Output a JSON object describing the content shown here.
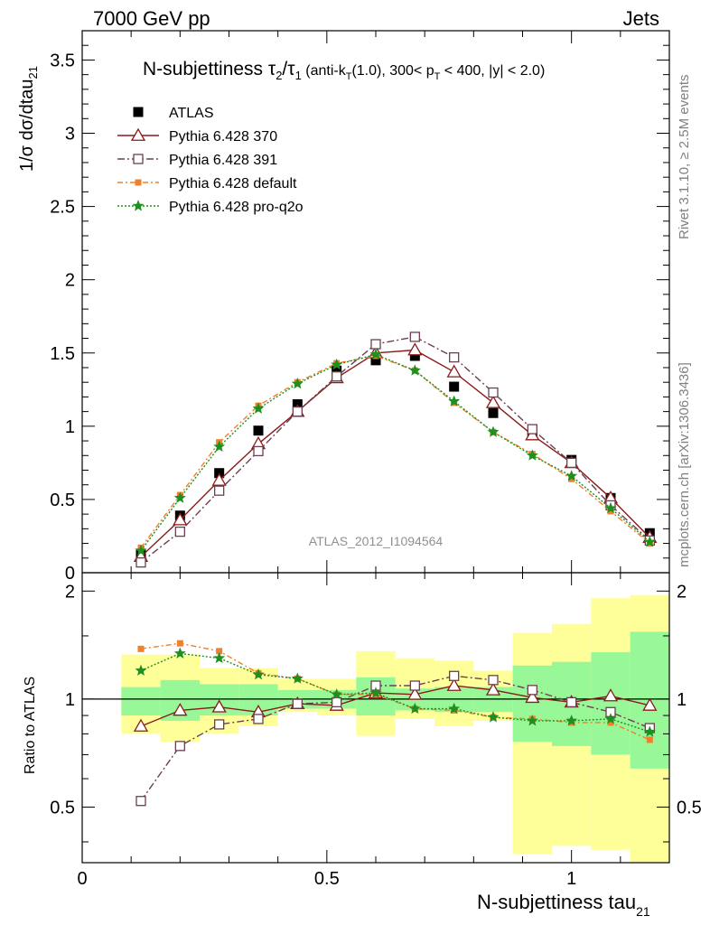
{
  "header": {
    "left": "7000 GeV pp",
    "right": "Jets"
  },
  "side_text": {
    "rivet": "Rivet 3.1.10, ≥ 2.5M events",
    "mcplots": "mcplots.cern.ch [arXiv:1306.3436]"
  },
  "analysis_label": "ATLAS_2012_I1094564",
  "plot_title": {
    "main": "N-subjettiness τ₂/τ₁",
    "selection": "(anti-k_T(1.0), 300< p_T < 400, |y| < 2.0)"
  },
  "axis": {
    "ylabel_main": "1/σ dσ/dtau_21",
    "ylabel_ratio": "Ratio to ATLAS",
    "xlabel": "N-subjettiness tau_21"
  },
  "colors": {
    "atlas": "#000000",
    "p370": "#8b1a1a",
    "p391": "#6b4050",
    "pdefault": "#f0802a",
    "pq2o": "#1f8f1f",
    "band_inner": "#98f898",
    "band_outer": "#ffff9a"
  },
  "chart_data": [
    {
      "type": "line",
      "xlim": [
        0,
        1.2
      ],
      "ylim": [
        0,
        3.7
      ],
      "x_ticks": [
        "0",
        "0.5",
        "1"
      ],
      "y_ticks": [
        "0",
        "0.5",
        "1",
        "1.5",
        "2",
        "2.5",
        "3",
        "3.5"
      ],
      "x": [
        0.12,
        0.2,
        0.28,
        0.36,
        0.44,
        0.52,
        0.6,
        0.68,
        0.76,
        0.84,
        0.92,
        1.0,
        1.08,
        1.16
      ],
      "series": [
        {
          "name": "ATLAS",
          "key": "atlas",
          "marker": "filled-square",
          "values": [
            0.13,
            0.39,
            0.68,
            0.97,
            1.15,
            1.38,
            1.45,
            1.48,
            1.27,
            1.09,
            0.94,
            0.77,
            0.51,
            0.27
          ]
        },
        {
          "name": "Pythia 6.428 370",
          "key": "p370",
          "marker": "open-triangle",
          "values": [
            0.11,
            0.36,
            0.63,
            0.88,
            1.1,
            1.33,
            1.5,
            1.52,
            1.37,
            1.16,
            0.94,
            0.75,
            0.51,
            0.24
          ]
        },
        {
          "name": "Pythia 6.428 391",
          "key": "p391",
          "marker": "open-square",
          "values": [
            0.07,
            0.28,
            0.56,
            0.83,
            1.1,
            1.34,
            1.56,
            1.61,
            1.47,
            1.23,
            0.98,
            0.75,
            0.46,
            0.22
          ]
        },
        {
          "name": "Pythia 6.428 default",
          "key": "pdefault",
          "marker": "small-filled-square",
          "values": [
            0.17,
            0.53,
            0.89,
            1.14,
            1.3,
            1.43,
            1.48,
            1.38,
            1.16,
            0.96,
            0.81,
            0.64,
            0.42,
            0.2
          ]
        },
        {
          "name": "Pythia 6.428 pro-q2o",
          "key": "pq2o",
          "marker": "star",
          "values": [
            0.15,
            0.51,
            0.86,
            1.12,
            1.29,
            1.42,
            1.49,
            1.38,
            1.17,
            0.96,
            0.8,
            0.66,
            0.44,
            0.21
          ]
        }
      ]
    },
    {
      "type": "line",
      "xlim": [
        0,
        1.2
      ],
      "ylim": [
        0.35,
        2.25
      ],
      "x_ticks": [
        "0",
        "0.5",
        "1"
      ],
      "y_ticks": [
        "0.5",
        "1",
        "2"
      ],
      "x": [
        0.12,
        0.2,
        0.28,
        0.36,
        0.44,
        0.52,
        0.6,
        0.68,
        0.76,
        0.84,
        0.92,
        1.0,
        1.08,
        1.16
      ],
      "bins": [
        [
          0.08,
          0.16
        ],
        [
          0.16,
          0.24
        ],
        [
          0.24,
          0.32
        ],
        [
          0.32,
          0.4
        ],
        [
          0.4,
          0.48
        ],
        [
          0.48,
          0.56
        ],
        [
          0.56,
          0.64
        ],
        [
          0.64,
          0.72
        ],
        [
          0.72,
          0.8
        ],
        [
          0.8,
          0.88
        ],
        [
          0.88,
          0.96
        ],
        [
          0.96,
          1.04
        ],
        [
          1.04,
          1.12
        ],
        [
          1.12,
          1.2
        ]
      ],
      "band_inner": [
        [
          0.9,
          1.08
        ],
        [
          0.87,
          1.13
        ],
        [
          0.9,
          1.1
        ],
        [
          0.9,
          1.1
        ],
        [
          0.94,
          1.06
        ],
        [
          0.94,
          1.06
        ],
        [
          0.9,
          1.15
        ],
        [
          0.93,
          1.07
        ],
        [
          0.92,
          1.08
        ],
        [
          0.92,
          1.08
        ],
        [
          0.76,
          1.24
        ],
        [
          0.74,
          1.27
        ],
        [
          0.7,
          1.35
        ],
        [
          0.64,
          1.54
        ]
      ],
      "band_outer": [
        [
          0.8,
          1.33
        ],
        [
          0.76,
          1.33
        ],
        [
          0.8,
          1.22
        ],
        [
          0.84,
          1.22
        ],
        [
          0.92,
          1.14
        ],
        [
          0.9,
          1.14
        ],
        [
          0.79,
          1.36
        ],
        [
          0.88,
          1.3
        ],
        [
          0.84,
          1.28
        ],
        [
          0.87,
          1.2
        ],
        [
          0.37,
          1.53
        ],
        [
          0.39,
          1.62
        ],
        [
          0.38,
          1.91
        ],
        [
          0.35,
          1.95
        ]
      ],
      "series": [
        {
          "name": "Pythia 6.428 370",
          "key": "p370",
          "marker": "open-triangle",
          "values": [
            0.84,
            0.93,
            0.95,
            0.92,
            0.97,
            0.96,
            1.04,
            1.03,
            1.09,
            1.06,
            1.01,
            0.98,
            1.02,
            0.96
          ]
        },
        {
          "name": "Pythia 6.428 391",
          "key": "p391",
          "marker": "open-square",
          "values": [
            0.52,
            0.74,
            0.85,
            0.88,
            0.97,
            0.98,
            1.09,
            1.09,
            1.16,
            1.13,
            1.06,
            0.98,
            0.92,
            0.83
          ]
        },
        {
          "name": "Pythia 6.428 default",
          "key": "pdefault",
          "marker": "small-filled-square",
          "values": [
            1.38,
            1.43,
            1.36,
            1.18,
            1.14,
            1.03,
            1.03,
            0.94,
            0.93,
            0.89,
            0.88,
            0.86,
            0.86,
            0.77
          ]
        },
        {
          "name": "Pythia 6.428 pro-q2o",
          "key": "pq2o",
          "marker": "star",
          "values": [
            1.2,
            1.34,
            1.3,
            1.17,
            1.14,
            1.03,
            1.04,
            0.94,
            0.94,
            0.89,
            0.87,
            0.87,
            0.88,
            0.81
          ]
        }
      ]
    }
  ]
}
